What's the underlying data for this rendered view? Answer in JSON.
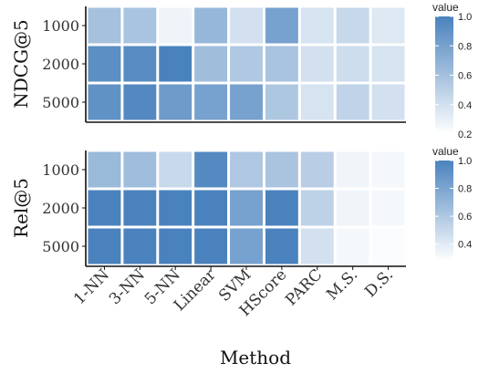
{
  "chart_data": {
    "type": "heatmap",
    "xlabel": "Method",
    "x_categories": [
      "1-NN",
      "3-NN",
      "5-NN",
      "Linear",
      "SVM",
      "HScore",
      "PARC",
      "M.S.",
      "D.S."
    ],
    "panels": [
      {
        "ylabel": "NDCG@5",
        "y_categories": [
          "1000",
          "2000",
          "5000"
        ],
        "values": [
          [
            0.6,
            0.58,
            0.27,
            0.66,
            0.4,
            0.8,
            0.38,
            0.45,
            0.35
          ],
          [
            0.92,
            0.94,
            1.0,
            0.62,
            0.55,
            0.58,
            0.4,
            0.42,
            0.38
          ],
          [
            0.9,
            0.96,
            0.84,
            0.8,
            0.8,
            0.56,
            0.38,
            0.48,
            0.4
          ]
        ],
        "legend": {
          "title": "value",
          "ticks": [
            0.2,
            0.4,
            0.6,
            0.8,
            1.0
          ],
          "range": [
            0.2,
            1.0
          ]
        }
      },
      {
        "ylabel": "Rel@5",
        "y_categories": [
          "1000",
          "2000",
          "5000"
        ],
        "values": [
          [
            0.68,
            0.66,
            0.5,
            0.96,
            0.6,
            0.62,
            0.56,
            0.34,
            0.32
          ],
          [
            1.0,
            1.0,
            1.0,
            1.0,
            0.82,
            1.0,
            0.54,
            0.34,
            0.32
          ],
          [
            1.0,
            1.0,
            1.0,
            1.0,
            0.82,
            1.0,
            0.46,
            0.32,
            0.3
          ]
        ],
        "legend": {
          "title": "value",
          "ticks": [
            0.4,
            0.6,
            0.8,
            1.0
          ],
          "range": [
            0.28,
            1.0
          ]
        }
      }
    ],
    "colors": {
      "low": "#ffffff",
      "high": "#4a82bd",
      "axis": "#111111"
    },
    "grid": false,
    "legend_placement": "right"
  }
}
